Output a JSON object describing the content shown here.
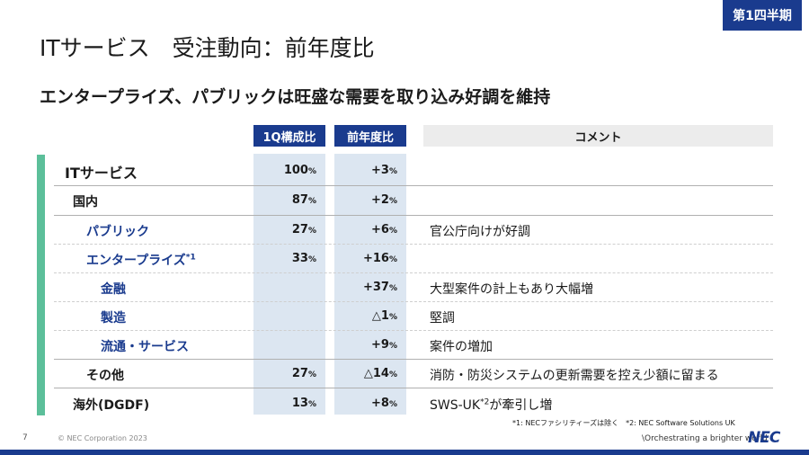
{
  "badge": "第1四半期",
  "title": "ITサービス　受注動向：前年度比",
  "subtitle": "エンタープライズ、パブリックは旺盛な需要を取り込み好調を維持",
  "headers": {
    "share": "1Q構成比",
    "yoy": "前年度比",
    "comment": "コメント"
  },
  "rows": [
    {
      "label": "ITサービス",
      "share": "100",
      "yoy": "+3",
      "comment": ""
    },
    {
      "label": "国内",
      "share": "87",
      "yoy": "+2",
      "comment": ""
    },
    {
      "label": "パブリック",
      "share": "27",
      "yoy": "+6",
      "comment": "官公庁向けが好調"
    },
    {
      "label": "エンタープライズ",
      "label_sup": "*1",
      "share": "33",
      "yoy": "+16",
      "comment": ""
    },
    {
      "label": "金融",
      "share": "",
      "yoy": "+37",
      "comment": "大型案件の計上もあり大幅増"
    },
    {
      "label": "製造",
      "share": "",
      "yoy": "△1",
      "comment": "堅調"
    },
    {
      "label": "流通・サービス",
      "share": "",
      "yoy": "+9",
      "comment": "案件の増加"
    },
    {
      "label": "その他",
      "share": "27",
      "yoy": "△14",
      "comment": "消防・防災システムの更新需要を控え少額に留まる"
    },
    {
      "label": "海外(DGDF)",
      "share": "13",
      "yoy": "+8",
      "comment": "SWS-UK",
      "comment_sup": "*2",
      "comment_tail": "が牽引し増"
    }
  ],
  "percent_sign": "%",
  "footnote": "*1:  NECファシリティーズは除く　*2: NEC Software Solutions UK",
  "page_number": "7",
  "copyright": "© NEC Corporation 2023",
  "tagline": "\\Orchestrating a brighter world",
  "logo": "NEC",
  "colors": {
    "navy": "#1a3b8e",
    "green": "#5cbf9a",
    "column_bg": "#dce6f1",
    "header_gray": "#ececec"
  }
}
